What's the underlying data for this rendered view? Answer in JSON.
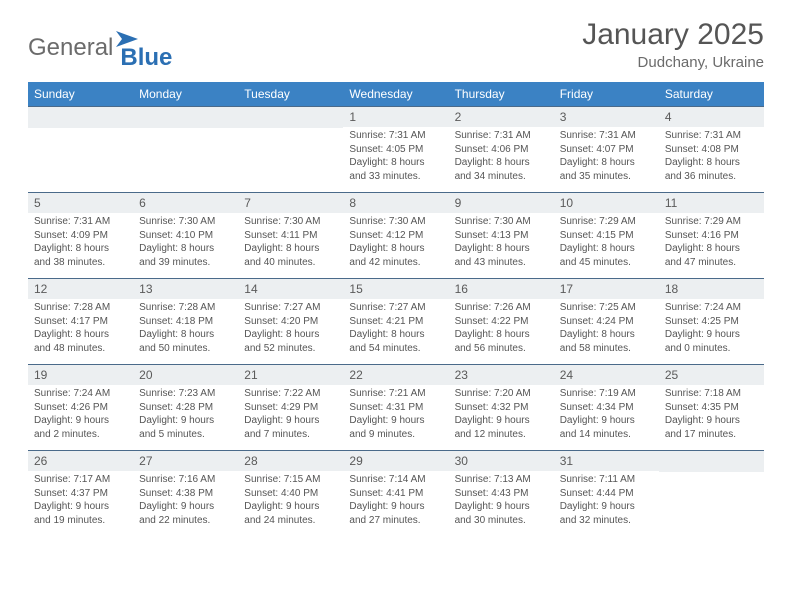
{
  "logo": {
    "text1": "General",
    "text2": "Blue"
  },
  "title": "January 2025",
  "location": "Dudchany, Ukraine",
  "colors": {
    "header_bg": "#3b82c4",
    "header_text": "#ffffff",
    "daynum_bg": "#eceff1",
    "cell_border_top": "#4a6a8a",
    "body_text": "#555555",
    "logo_gray": "#6b6b6b",
    "logo_blue": "#2b6fb3"
  },
  "weekdays": [
    "Sunday",
    "Monday",
    "Tuesday",
    "Wednesday",
    "Thursday",
    "Friday",
    "Saturday"
  ],
  "weeks": [
    [
      null,
      null,
      null,
      {
        "n": "1",
        "sr": "Sunrise: 7:31 AM",
        "ss": "Sunset: 4:05 PM",
        "d1": "Daylight: 8 hours",
        "d2": "and 33 minutes."
      },
      {
        "n": "2",
        "sr": "Sunrise: 7:31 AM",
        "ss": "Sunset: 4:06 PM",
        "d1": "Daylight: 8 hours",
        "d2": "and 34 minutes."
      },
      {
        "n": "3",
        "sr": "Sunrise: 7:31 AM",
        "ss": "Sunset: 4:07 PM",
        "d1": "Daylight: 8 hours",
        "d2": "and 35 minutes."
      },
      {
        "n": "4",
        "sr": "Sunrise: 7:31 AM",
        "ss": "Sunset: 4:08 PM",
        "d1": "Daylight: 8 hours",
        "d2": "and 36 minutes."
      }
    ],
    [
      {
        "n": "5",
        "sr": "Sunrise: 7:31 AM",
        "ss": "Sunset: 4:09 PM",
        "d1": "Daylight: 8 hours",
        "d2": "and 38 minutes."
      },
      {
        "n": "6",
        "sr": "Sunrise: 7:30 AM",
        "ss": "Sunset: 4:10 PM",
        "d1": "Daylight: 8 hours",
        "d2": "and 39 minutes."
      },
      {
        "n": "7",
        "sr": "Sunrise: 7:30 AM",
        "ss": "Sunset: 4:11 PM",
        "d1": "Daylight: 8 hours",
        "d2": "and 40 minutes."
      },
      {
        "n": "8",
        "sr": "Sunrise: 7:30 AM",
        "ss": "Sunset: 4:12 PM",
        "d1": "Daylight: 8 hours",
        "d2": "and 42 minutes."
      },
      {
        "n": "9",
        "sr": "Sunrise: 7:30 AM",
        "ss": "Sunset: 4:13 PM",
        "d1": "Daylight: 8 hours",
        "d2": "and 43 minutes."
      },
      {
        "n": "10",
        "sr": "Sunrise: 7:29 AM",
        "ss": "Sunset: 4:15 PM",
        "d1": "Daylight: 8 hours",
        "d2": "and 45 minutes."
      },
      {
        "n": "11",
        "sr": "Sunrise: 7:29 AM",
        "ss": "Sunset: 4:16 PM",
        "d1": "Daylight: 8 hours",
        "d2": "and 47 minutes."
      }
    ],
    [
      {
        "n": "12",
        "sr": "Sunrise: 7:28 AM",
        "ss": "Sunset: 4:17 PM",
        "d1": "Daylight: 8 hours",
        "d2": "and 48 minutes."
      },
      {
        "n": "13",
        "sr": "Sunrise: 7:28 AM",
        "ss": "Sunset: 4:18 PM",
        "d1": "Daylight: 8 hours",
        "d2": "and 50 minutes."
      },
      {
        "n": "14",
        "sr": "Sunrise: 7:27 AM",
        "ss": "Sunset: 4:20 PM",
        "d1": "Daylight: 8 hours",
        "d2": "and 52 minutes."
      },
      {
        "n": "15",
        "sr": "Sunrise: 7:27 AM",
        "ss": "Sunset: 4:21 PM",
        "d1": "Daylight: 8 hours",
        "d2": "and 54 minutes."
      },
      {
        "n": "16",
        "sr": "Sunrise: 7:26 AM",
        "ss": "Sunset: 4:22 PM",
        "d1": "Daylight: 8 hours",
        "d2": "and 56 minutes."
      },
      {
        "n": "17",
        "sr": "Sunrise: 7:25 AM",
        "ss": "Sunset: 4:24 PM",
        "d1": "Daylight: 8 hours",
        "d2": "and 58 minutes."
      },
      {
        "n": "18",
        "sr": "Sunrise: 7:24 AM",
        "ss": "Sunset: 4:25 PM",
        "d1": "Daylight: 9 hours",
        "d2": "and 0 minutes."
      }
    ],
    [
      {
        "n": "19",
        "sr": "Sunrise: 7:24 AM",
        "ss": "Sunset: 4:26 PM",
        "d1": "Daylight: 9 hours",
        "d2": "and 2 minutes."
      },
      {
        "n": "20",
        "sr": "Sunrise: 7:23 AM",
        "ss": "Sunset: 4:28 PM",
        "d1": "Daylight: 9 hours",
        "d2": "and 5 minutes."
      },
      {
        "n": "21",
        "sr": "Sunrise: 7:22 AM",
        "ss": "Sunset: 4:29 PM",
        "d1": "Daylight: 9 hours",
        "d2": "and 7 minutes."
      },
      {
        "n": "22",
        "sr": "Sunrise: 7:21 AM",
        "ss": "Sunset: 4:31 PM",
        "d1": "Daylight: 9 hours",
        "d2": "and 9 minutes."
      },
      {
        "n": "23",
        "sr": "Sunrise: 7:20 AM",
        "ss": "Sunset: 4:32 PM",
        "d1": "Daylight: 9 hours",
        "d2": "and 12 minutes."
      },
      {
        "n": "24",
        "sr": "Sunrise: 7:19 AM",
        "ss": "Sunset: 4:34 PM",
        "d1": "Daylight: 9 hours",
        "d2": "and 14 minutes."
      },
      {
        "n": "25",
        "sr": "Sunrise: 7:18 AM",
        "ss": "Sunset: 4:35 PM",
        "d1": "Daylight: 9 hours",
        "d2": "and 17 minutes."
      }
    ],
    [
      {
        "n": "26",
        "sr": "Sunrise: 7:17 AM",
        "ss": "Sunset: 4:37 PM",
        "d1": "Daylight: 9 hours",
        "d2": "and 19 minutes."
      },
      {
        "n": "27",
        "sr": "Sunrise: 7:16 AM",
        "ss": "Sunset: 4:38 PM",
        "d1": "Daylight: 9 hours",
        "d2": "and 22 minutes."
      },
      {
        "n": "28",
        "sr": "Sunrise: 7:15 AM",
        "ss": "Sunset: 4:40 PM",
        "d1": "Daylight: 9 hours",
        "d2": "and 24 minutes."
      },
      {
        "n": "29",
        "sr": "Sunrise: 7:14 AM",
        "ss": "Sunset: 4:41 PM",
        "d1": "Daylight: 9 hours",
        "d2": "and 27 minutes."
      },
      {
        "n": "30",
        "sr": "Sunrise: 7:13 AM",
        "ss": "Sunset: 4:43 PM",
        "d1": "Daylight: 9 hours",
        "d2": "and 30 minutes."
      },
      {
        "n": "31",
        "sr": "Sunrise: 7:11 AM",
        "ss": "Sunset: 4:44 PM",
        "d1": "Daylight: 9 hours",
        "d2": "and 32 minutes."
      },
      null
    ]
  ]
}
